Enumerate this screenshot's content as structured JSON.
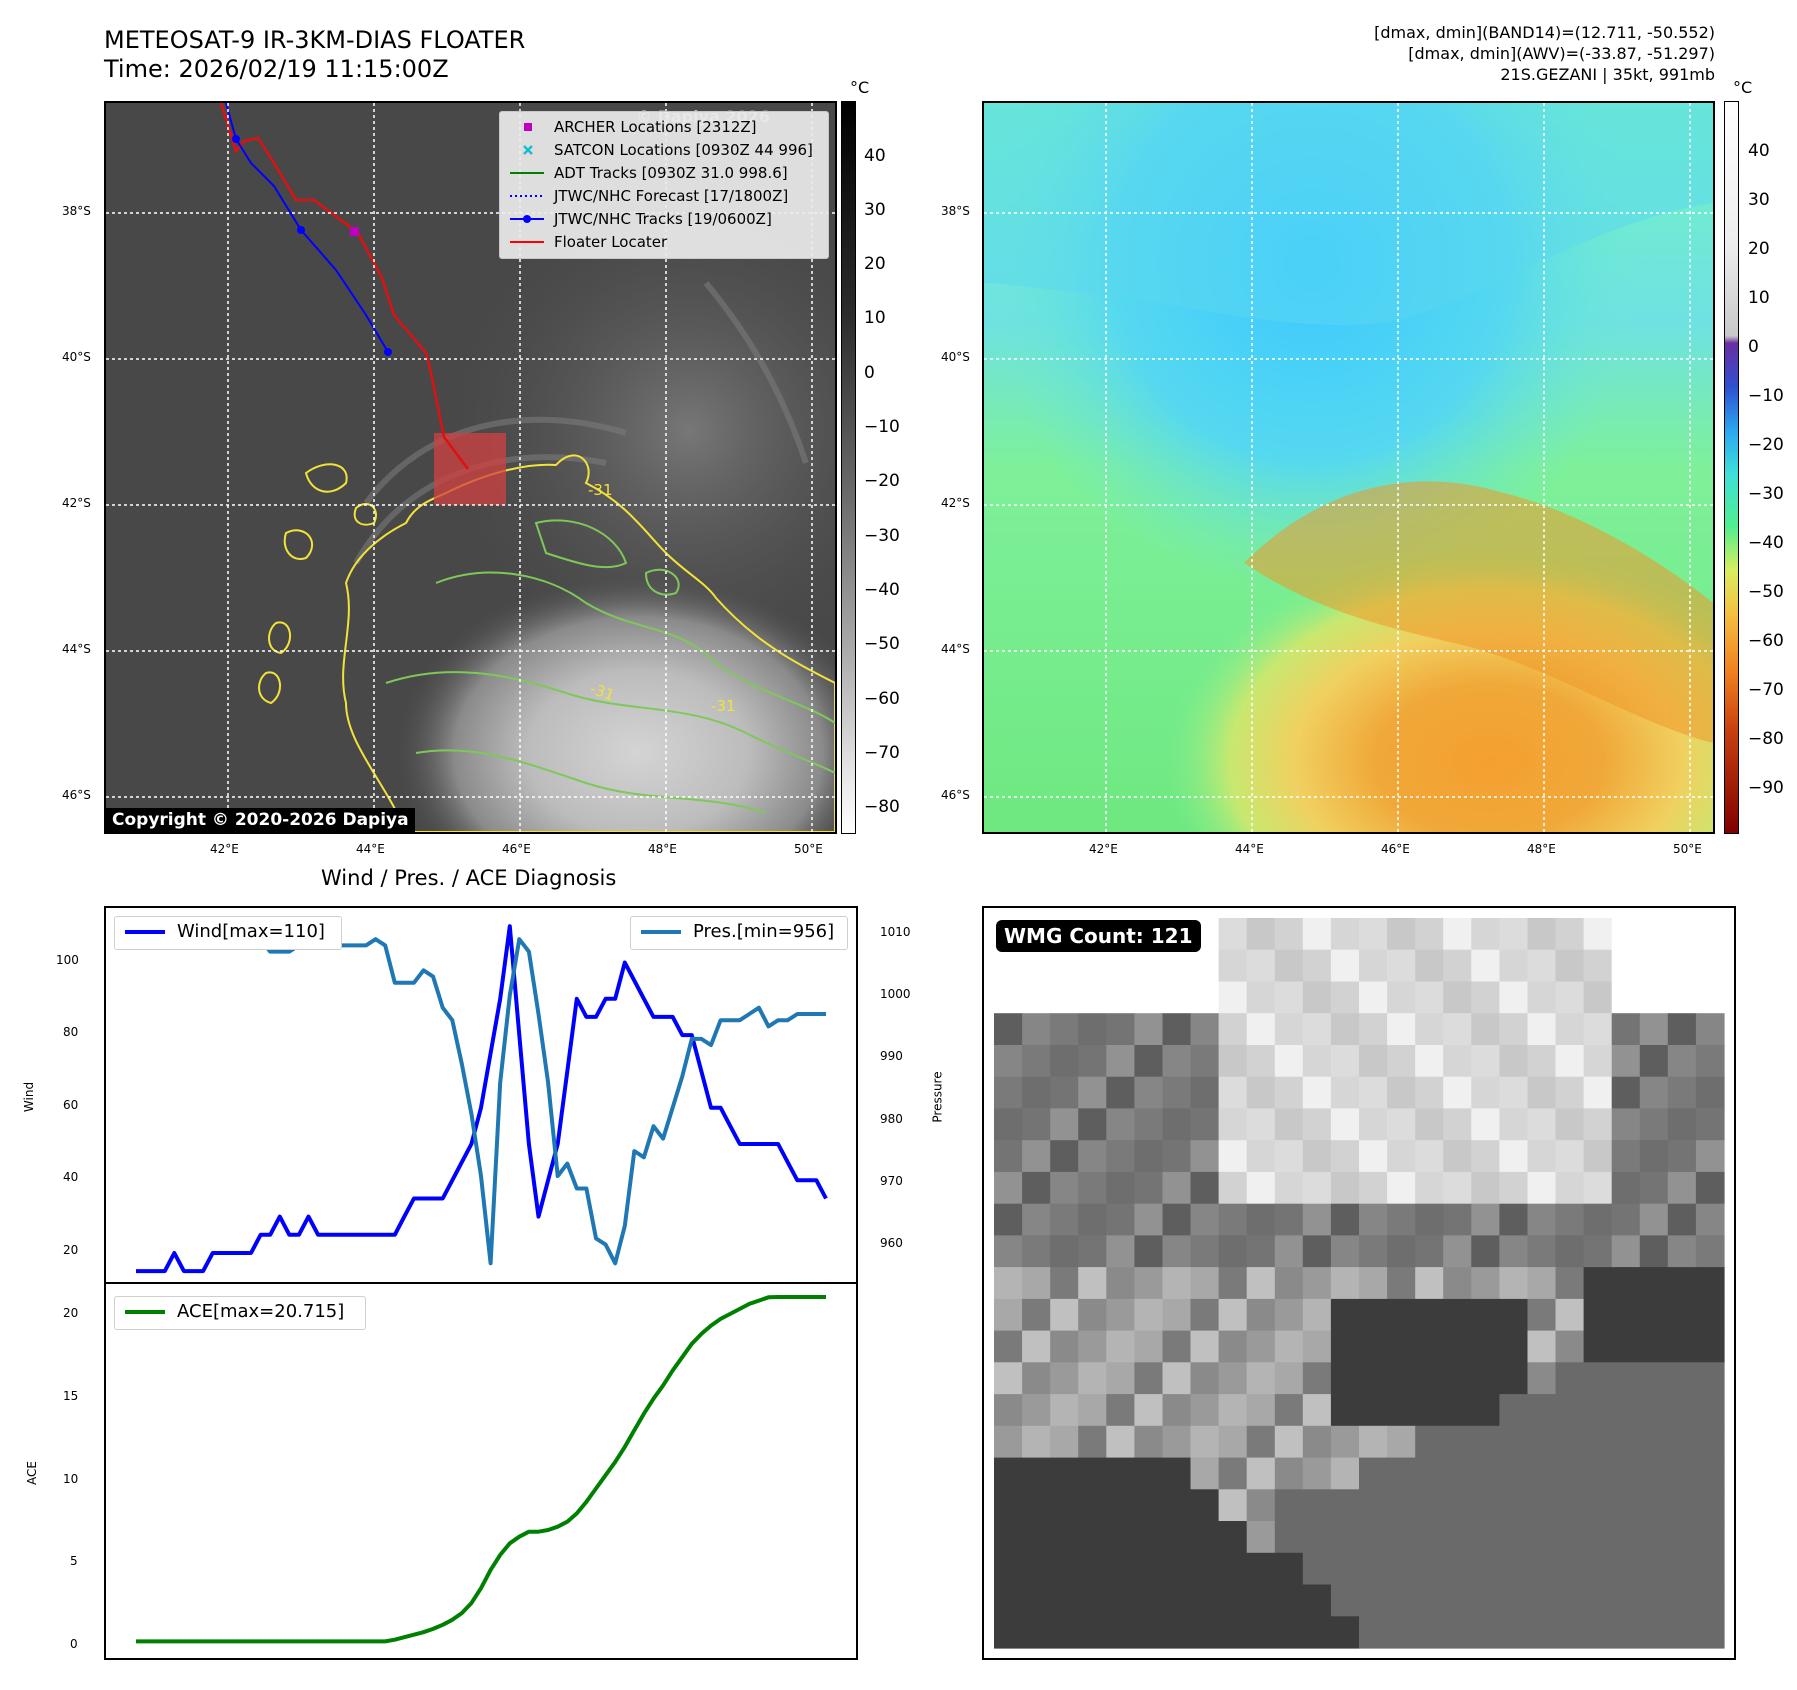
{
  "header": {
    "title_line1": "METEOSAT-9 IR-3KM-DIAS FLOATER",
    "title_line2": "Time: 2026/02/19 11:15:00Z",
    "info_line1": "[dmax, dmin](BAND14)=(12.711, -50.552)",
    "info_line2": "[dmax, dmin](AWV)=(-33.87, -51.297)",
    "info_line3": "21S.GEZANI | 35kt, 991mb"
  },
  "map": {
    "lat_labels": [
      "38°S",
      "40°S",
      "42°S",
      "44°S",
      "46°S"
    ],
    "lon_labels": [
      "42°E",
      "44°E",
      "46°E",
      "48°E",
      "50°E"
    ],
    "copyright": "Copyright © 2020-2026 Dapiya",
    "watermark": "© Dapiya 2026",
    "contour_label": "-31",
    "legend": [
      {
        "label": "ARCHER Locations [2312Z]",
        "color": "#c000c0",
        "kind": "square"
      },
      {
        "label": "SATCON Locations [0930Z 44 996]",
        "color": "#17becf",
        "kind": "x"
      },
      {
        "label": "ADT Tracks [0930Z 31.0 998.6]",
        "color": "#008000",
        "kind": "line"
      },
      {
        "label": "JTWC/NHC Forecast [17/1800Z]",
        "color": "#0000ff",
        "kind": "dotted"
      },
      {
        "label": "JTWC/NHC Tracks [19/0600Z]",
        "color": "#0000ff",
        "kind": "line-dot"
      },
      {
        "label": "Floater Locater",
        "color": "#ff0000",
        "kind": "line"
      }
    ]
  },
  "colorbar_ir": {
    "unit": "°C",
    "labels": [
      "40",
      "30",
      "20",
      "10",
      "0",
      "−10",
      "−20",
      "−30",
      "−40",
      "−50",
      "−60",
      "−70",
      "−80"
    ]
  },
  "colorbar_wv": {
    "unit": "°C",
    "labels": [
      "40",
      "30",
      "20",
      "10",
      "0",
      "−10",
      "−20",
      "−30",
      "−40",
      "−50",
      "−60",
      "−70",
      "−80",
      "−90"
    ]
  },
  "diagnosis": {
    "title": "Wind / Pres. / ACE Diagnosis",
    "wind_ylabel": "Wind",
    "pres_ylabel": "Pressure",
    "ace_ylabel": "ACE",
    "wind_legend": "Wind[max=110]",
    "pres_legend": "Pres.[min=956]",
    "ace_legend": "ACE[max=20.715]",
    "wind_ticks": [
      "100",
      "80",
      "60",
      "40",
      "20"
    ],
    "pres_ticks": [
      "1010",
      "1000",
      "990",
      "980",
      "970",
      "960"
    ],
    "ace_ticks": [
      "20",
      "15",
      "10",
      "5",
      "0"
    ]
  },
  "wmg": {
    "label": "WMG Count: 121"
  },
  "chart_data": [
    {
      "type": "line",
      "title": "Wind / Pres. / ACE Diagnosis",
      "ylabel": "Wind",
      "ylim": [
        12,
        115
      ],
      "series": [
        {
          "name": "Wind[max=110]",
          "color": "#0000ff",
          "values": [
            15,
            15,
            15,
            15,
            20,
            15,
            15,
            15,
            20,
            20,
            20,
            20,
            20,
            25,
            25,
            30,
            25,
            25,
            30,
            25,
            25,
            25,
            25,
            25,
            25,
            25,
            25,
            25,
            30,
            35,
            35,
            35,
            35,
            40,
            45,
            50,
            60,
            75,
            90,
            110,
            80,
            50,
            30,
            40,
            50,
            70,
            90,
            85,
            85,
            90,
            90,
            100,
            95,
            90,
            85,
            85,
            85,
            80,
            80,
            70,
            60,
            60,
            55,
            50,
            50,
            50,
            50,
            50,
            45,
            40,
            40,
            40,
            35
          ]
        }
      ]
    },
    {
      "type": "line",
      "ylabel": "Pressure",
      "ylim": [
        953,
        1013
      ],
      "series": [
        {
          "name": "Pres.[min=956]",
          "color": "#1f77b4",
          "values": [
            1010,
            1011,
            1011,
            1011,
            1011,
            1011,
            1010,
            1008,
            1008,
            1008,
            1007,
            1007,
            1007,
            1008,
            1006,
            1006,
            1006,
            1007,
            1009,
            1008,
            1008,
            1007,
            1007,
            1007,
            1007,
            1008,
            1007,
            1001,
            1001,
            1001,
            1003,
            1002,
            997,
            995,
            988,
            980,
            970,
            956,
            985,
            999,
            1008,
            1006,
            996,
            985,
            970,
            972,
            968,
            968,
            960,
            959,
            956,
            962,
            974,
            973,
            978,
            976,
            981,
            986,
            992,
            992,
            991,
            995,
            995,
            995,
            996,
            997,
            994,
            995,
            995,
            996,
            996,
            996,
            996
          ]
        }
      ]
    },
    {
      "type": "area",
      "ylabel": "ACE",
      "ylim": [
        -1,
        21.5
      ],
      "series": [
        {
          "name": "ACE[max=20.715]",
          "color": "#008000",
          "values": [
            0,
            0,
            0,
            0,
            0,
            0,
            0,
            0,
            0,
            0,
            0,
            0,
            0,
            0,
            0,
            0,
            0,
            0,
            0,
            0,
            0,
            0,
            0,
            0,
            0,
            0,
            0,
            0.1,
            0.25,
            0.4,
            0.55,
            0.75,
            1.0,
            1.3,
            1.7,
            2.3,
            3.2,
            4.3,
            5.2,
            5.9,
            6.3,
            6.6,
            6.6,
            6.7,
            6.9,
            7.2,
            7.7,
            8.4,
            9.2,
            10.0,
            10.8,
            11.7,
            12.7,
            13.7,
            14.6,
            15.4,
            16.3,
            17.1,
            17.9,
            18.5,
            19.0,
            19.4,
            19.7,
            20.0,
            20.3,
            20.5,
            20.7,
            20.715,
            20.715,
            20.715,
            20.715,
            20.715,
            20.715
          ]
        }
      ]
    }
  ]
}
